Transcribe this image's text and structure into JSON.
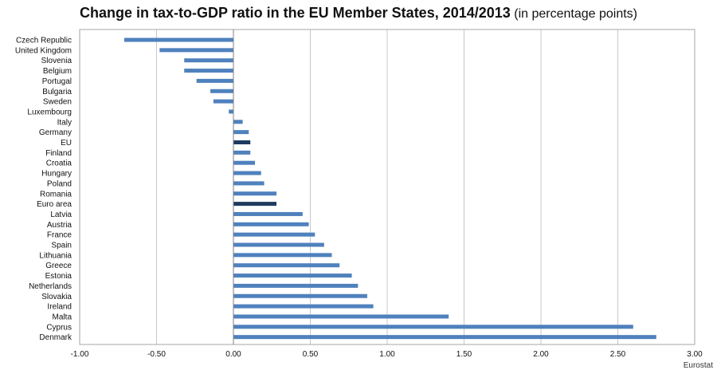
{
  "chart_data": {
    "type": "bar",
    "orientation": "horizontal",
    "title": "Change in tax-to-GDP ratio in the EU Member States, 2014/2013",
    "subtitle": "(in percentage points)",
    "source": "Eurostat",
    "categories": [
      "Czech Republic",
      "United Kingdom",
      "Slovenia",
      "Belgium",
      "Portugal",
      "Bulgaria",
      "Sweden",
      "Luxembourg",
      "Italy",
      "Germany",
      "EU",
      "Finland",
      "Croatia",
      "Hungary",
      "Poland",
      "Romania",
      "Euro area",
      "Latvia",
      "Austria",
      "France",
      "Spain",
      "Lithuania",
      "Greece",
      "Estonia",
      "Netherlands",
      "Slovakia",
      "Ireland",
      "Malta",
      "Cyprus",
      "Denmark"
    ],
    "values": [
      -0.71,
      -0.48,
      -0.32,
      -0.32,
      -0.24,
      -0.15,
      -0.13,
      -0.03,
      0.06,
      0.1,
      0.11,
      0.11,
      0.14,
      0.18,
      0.2,
      0.28,
      0.28,
      0.45,
      0.49,
      0.53,
      0.59,
      0.64,
      0.69,
      0.77,
      0.81,
      0.87,
      0.91,
      1.4,
      2.6,
      2.75
    ],
    "highlight": [
      "EU",
      "Euro area"
    ],
    "xlim": [
      -1.0,
      3.0
    ],
    "xticks": [
      "-1.00",
      "-0.50",
      "0.00",
      "0.50",
      "1.00",
      "1.50",
      "2.00",
      "2.50",
      "3.00"
    ],
    "grid": true,
    "colors": {
      "bar": "#4F81BD",
      "highlight": "#1F3A5F",
      "grid": "#C8C8C8",
      "frame": "#A6A6A6",
      "axis": "#808080"
    }
  }
}
